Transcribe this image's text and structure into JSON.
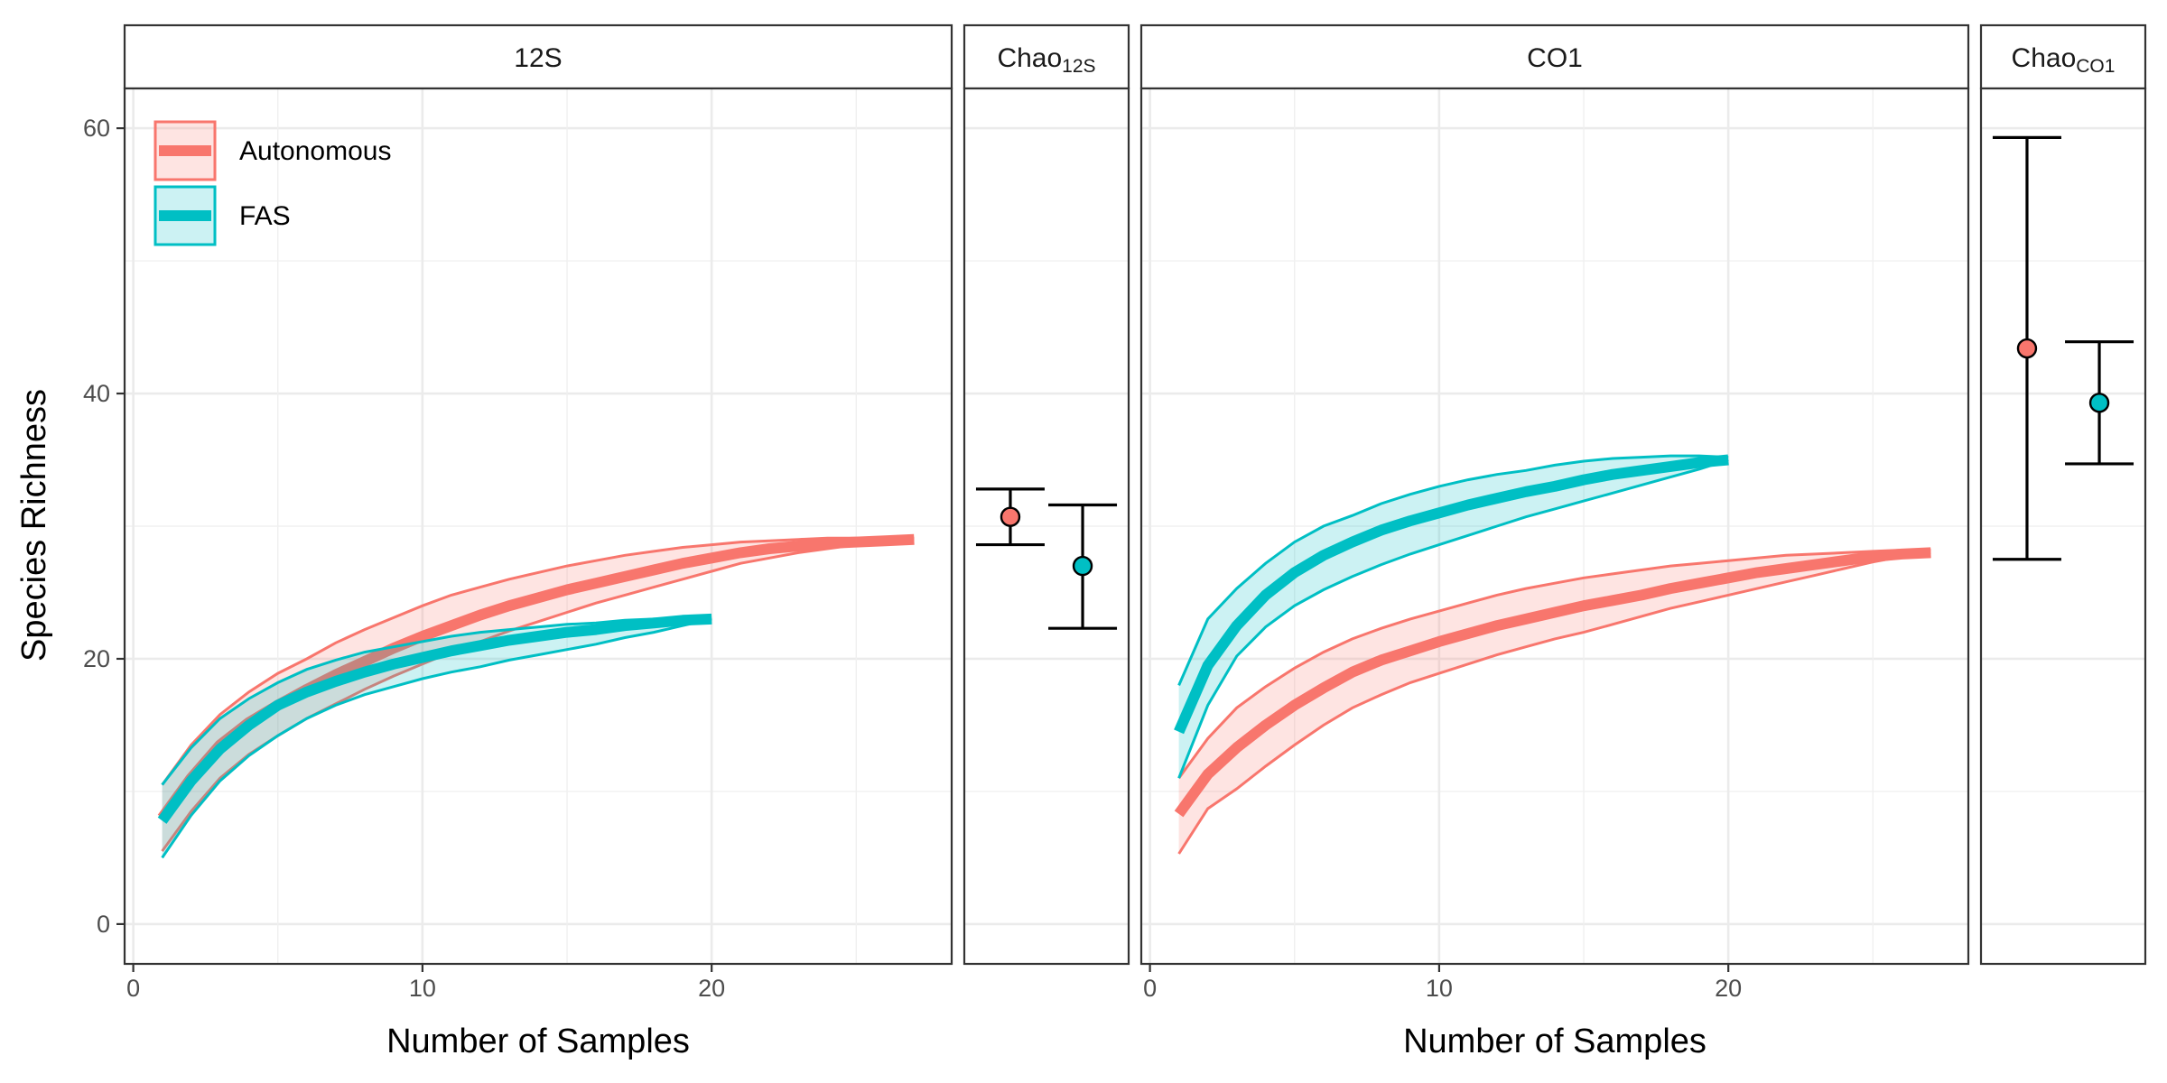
{
  "chart_data": {
    "type": "line",
    "ylabel": "Species Richness",
    "xlabel": "Number of Samples",
    "y_ticks": [
      "0",
      "20",
      "40",
      "60"
    ],
    "x_ticks": [
      "0",
      "10",
      "20"
    ],
    "ylim": [
      -3,
      63
    ],
    "xlim": [
      -0.3,
      28.3
    ],
    "grid": true,
    "legend": {
      "placement": "top-left",
      "entries": [
        "Autonomous",
        "FAS"
      ]
    },
    "colors": {
      "Autonomous": "#F8766D",
      "FAS": "#00BFC4"
    },
    "panels": [
      {
        "strip": "12S",
        "kind": "rarefaction",
        "series": [
          {
            "name": "Autonomous",
            "x": [
              1,
              2,
              3,
              4,
              5,
              6,
              7,
              8,
              9,
              10,
              11,
              12,
              13,
              14,
              15,
              16,
              17,
              18,
              19,
              20,
              21,
              22,
              23,
              24,
              25,
              26,
              27
            ],
            "y": [
              8,
              11,
              13.5,
              15.2,
              16.5,
              17.7,
              18.8,
              19.8,
              20.8,
              21.7,
              22.5,
              23.3,
              24,
              24.6,
              25.2,
              25.7,
              26.2,
              26.7,
              27.2,
              27.6,
              28,
              28.3,
              28.5,
              28.7,
              28.8,
              28.9,
              29
            ],
            "lower": [
              5.5,
              8.5,
              11,
              12.8,
              14.2,
              15.5,
              16.6,
              17.7,
              18.7,
              19.6,
              20.5,
              21.3,
              22.1,
              22.8,
              23.5,
              24.2,
              24.8,
              25.4,
              26,
              26.6,
              27.2,
              27.6,
              28,
              28.3,
              28.6,
              28.8,
              29
            ],
            "upper": [
              10.5,
              13.5,
              15.8,
              17.5,
              18.9,
              20,
              21.2,
              22.2,
              23.1,
              24,
              24.8,
              25.4,
              26,
              26.5,
              27,
              27.4,
              27.8,
              28.1,
              28.4,
              28.6,
              28.8,
              28.9,
              29,
              29.1,
              29.1,
              29.1,
              29.1
            ]
          },
          {
            "name": "FAS",
            "x": [
              1,
              2,
              3,
              4,
              5,
              6,
              7,
              8,
              9,
              10,
              11,
              12,
              13,
              14,
              15,
              16,
              17,
              18,
              19,
              20
            ],
            "y": [
              7.8,
              10.8,
              13.2,
              15,
              16.5,
              17.5,
              18.3,
              19,
              19.6,
              20.1,
              20.6,
              21,
              21.4,
              21.7,
              22,
              22.2,
              22.5,
              22.7,
              22.9,
              23
            ],
            "lower": [
              5,
              8.2,
              10.8,
              12.7,
              14.2,
              15.5,
              16.5,
              17.3,
              17.9,
              18.5,
              19,
              19.4,
              19.9,
              20.3,
              20.7,
              21.1,
              21.6,
              22,
              22.5,
              23
            ],
            "upper": [
              10.5,
              13.3,
              15.5,
              17,
              18.2,
              19.2,
              19.9,
              20.5,
              20.9,
              21.3,
              21.7,
              22,
              22.2,
              22.4,
              22.6,
              22.7,
              22.9,
              23,
              23,
              23
            ]
          }
        ]
      },
      {
        "strip": "Chao",
        "strip_sub": "12S",
        "kind": "estimate",
        "series": [
          {
            "name": "Autonomous",
            "value": 30.7,
            "lower": 28.6,
            "upper": 32.8
          },
          {
            "name": "FAS",
            "value": 27,
            "lower": 22.3,
            "upper": 31.6
          }
        ]
      },
      {
        "strip": "CO1",
        "kind": "rarefaction",
        "series": [
          {
            "name": "Autonomous",
            "x": [
              1,
              2,
              3,
              4,
              5,
              6,
              7,
              8,
              9,
              10,
              11,
              12,
              13,
              14,
              15,
              16,
              17,
              18,
              19,
              20,
              21,
              22,
              23,
              24,
              25,
              26,
              27
            ],
            "y": [
              8.3,
              11.3,
              13.3,
              15,
              16.5,
              17.8,
              19,
              19.9,
              20.6,
              21.3,
              21.9,
              22.5,
              23,
              23.5,
              24,
              24.4,
              24.8,
              25.3,
              25.7,
              26.1,
              26.5,
              26.8,
              27.1,
              27.4,
              27.7,
              27.9,
              28
            ],
            "lower": [
              5.3,
              8.7,
              10.2,
              11.9,
              13.5,
              15,
              16.3,
              17.3,
              18.2,
              18.9,
              19.6,
              20.3,
              20.9,
              21.5,
              22,
              22.6,
              23.2,
              23.8,
              24.3,
              24.8,
              25.3,
              25.8,
              26.3,
              26.8,
              27.3,
              27.7,
              28
            ],
            "upper": [
              11,
              14,
              16.3,
              17.9,
              19.3,
              20.5,
              21.5,
              22.3,
              23,
              23.6,
              24.2,
              24.8,
              25.3,
              25.7,
              26.1,
              26.4,
              26.7,
              27,
              27.2,
              27.4,
              27.6,
              27.8,
              27.9,
              28,
              28.1,
              28.2,
              28.2
            ]
          },
          {
            "name": "FAS",
            "x": [
              1,
              2,
              3,
              4,
              5,
              6,
              7,
              8,
              9,
              10,
              11,
              12,
              13,
              14,
              15,
              16,
              17,
              18,
              19,
              20
            ],
            "y": [
              14.5,
              19.5,
              22.5,
              24.8,
              26.5,
              27.8,
              28.8,
              29.7,
              30.4,
              31,
              31.6,
              32.1,
              32.6,
              33,
              33.5,
              33.9,
              34.2,
              34.5,
              34.8,
              35
            ],
            "lower": [
              11,
              16.5,
              20.2,
              22.4,
              24,
              25.2,
              26.2,
              27.1,
              27.9,
              28.6,
              29.3,
              30,
              30.7,
              31.3,
              31.9,
              32.5,
              33.1,
              33.7,
              34.3,
              35
            ],
            "upper": [
              18,
              23,
              25.3,
              27.2,
              28.8,
              30,
              30.8,
              31.7,
              32.4,
              33,
              33.5,
              33.9,
              34.2,
              34.6,
              34.9,
              35.1,
              35.2,
              35.3,
              35.3,
              35.2
            ]
          }
        ]
      },
      {
        "strip": "Chao",
        "strip_sub": "CO1",
        "kind": "estimate",
        "series": [
          {
            "name": "Autonomous",
            "value": 43.4,
            "lower": 27.5,
            "upper": 59.3
          },
          {
            "name": "FAS",
            "value": 39.3,
            "lower": 34.7,
            "upper": 43.9
          }
        ]
      }
    ]
  }
}
